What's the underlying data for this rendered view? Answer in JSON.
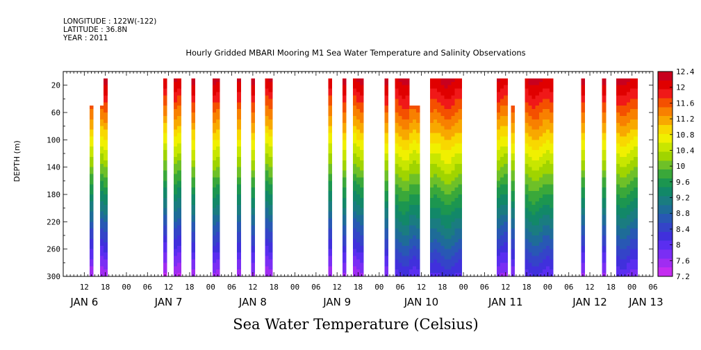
{
  "header": {
    "longitude": "LONGITUDE : 122W(-122)",
    "latitude": "LATITUDE : 36.8N",
    "year": "YEAR : 2011"
  },
  "chart_data": {
    "type": "heatmap",
    "title": "Hourly Gridded MBARI Mooring M1 Sea Water Temperature and Salinity Observations",
    "xlabel": "Sea Water Temperature (Celsius)",
    "ylabel": "DEPTH (m)",
    "x_hours_range": [
      6,
      174
    ],
    "x_units": "hours since JAN 6 00:00, 2011",
    "x_tick_labels": [
      "12",
      "18",
      "00",
      "06",
      "12",
      "18",
      "00",
      "06",
      "12",
      "18",
      "00",
      "06",
      "12",
      "18",
      "00",
      "06",
      "12",
      "18",
      "00",
      "06",
      "12",
      "18",
      "00",
      "06",
      "12",
      "18",
      "00",
      "06"
    ],
    "x_tick_hours": [
      12,
      18,
      24,
      30,
      36,
      42,
      48,
      54,
      60,
      66,
      72,
      78,
      84,
      90,
      96,
      102,
      108,
      114,
      120,
      126,
      132,
      138,
      144,
      150,
      156,
      162,
      168,
      174
    ],
    "day_labels": [
      {
        "label": "JAN  6",
        "hour": 12
      },
      {
        "label": "JAN  7",
        "hour": 36
      },
      {
        "label": "JAN  8",
        "hour": 60
      },
      {
        "label": "JAN  9",
        "hour": 84
      },
      {
        "label": "JAN 10",
        "hour": 108
      },
      {
        "label": "JAN 11",
        "hour": 132
      },
      {
        "label": "JAN 12",
        "hour": 156
      },
      {
        "label": "JAN 13",
        "hour": 172
      }
    ],
    "y_range": [
      300,
      0
    ],
    "y_ticks": [
      20,
      60,
      100,
      140,
      180,
      220,
      260,
      300
    ],
    "y_tick_labels": [
      "20",
      "60",
      "100",
      "140",
      "180",
      "220",
      "260",
      "300"
    ],
    "colorbar": {
      "levels": [
        12.4,
        12,
        11.6,
        11.2,
        10.8,
        10.4,
        10,
        9.6,
        9.2,
        8.8,
        8.4,
        8,
        7.6,
        7.2
      ],
      "labels": [
        "12.4",
        "12",
        "11.6",
        "11.2",
        "10.8",
        "10.4",
        "10",
        "9.6",
        "9.2",
        "8.8",
        "8.4",
        "8",
        "7.6",
        "7.2"
      ],
      "colors": [
        "#c8001e",
        "#e00000",
        "#f01818",
        "#f45000",
        "#f88000",
        "#f8a800",
        "#f8d800",
        "#f0f000",
        "#c8e600",
        "#a0d400",
        "#6ec028",
        "#3aa83a",
        "#1c9650",
        "#128868",
        "#1a7c80",
        "#1e6c98",
        "#2858b4",
        "#3444c8",
        "#4030dc",
        "#5a2ef0",
        "#7a2ef4",
        "#a02cf2",
        "#c42cf0"
      ]
    },
    "segments": [
      {
        "start": 13.5,
        "end": 14.5,
        "top_depth": 60,
        "warm": 0.1
      },
      {
        "start": 16.5,
        "end": 17.5,
        "top_depth": 60,
        "warm": 0.1
      },
      {
        "start": 17.5,
        "end": 18.5,
        "top_depth": 20,
        "warm": 0.1
      },
      {
        "start": 34.5,
        "end": 35.5,
        "top_depth": 20,
        "warm": 0.1
      },
      {
        "start": 37.5,
        "end": 39.5,
        "top_depth": 20,
        "warm": 0.1
      },
      {
        "start": 42.5,
        "end": 43.5,
        "top_depth": 20,
        "warm": 0.1
      },
      {
        "start": 48.5,
        "end": 50.5,
        "top_depth": 20,
        "warm": 0.15
      },
      {
        "start": 55.5,
        "end": 56.5,
        "top_depth": 20,
        "warm": 0.15
      },
      {
        "start": 59.5,
        "end": 60.5,
        "top_depth": 20,
        "warm": 0.15
      },
      {
        "start": 63.5,
        "end": 65.5,
        "top_depth": 20,
        "warm": 0.15
      },
      {
        "start": 81.5,
        "end": 82.5,
        "top_depth": 20,
        "warm": 0.15
      },
      {
        "start": 85.5,
        "end": 86.5,
        "top_depth": 20,
        "warm": 0.15
      },
      {
        "start": 88.5,
        "end": 91.5,
        "top_depth": 20,
        "warm": 0.15
      },
      {
        "start": 97.5,
        "end": 98.5,
        "top_depth": 20,
        "warm": 0.2
      },
      {
        "start": 100.5,
        "end": 104.5,
        "top_depth": 20,
        "warm": 0.45
      },
      {
        "start": 104.5,
        "end": 107.5,
        "top_depth": 60,
        "warm": 0.45
      },
      {
        "start": 110.5,
        "end": 119.5,
        "top_depth": 20,
        "warm": 0.5
      },
      {
        "start": 129.5,
        "end": 132.5,
        "top_depth": 20,
        "warm": 0.25
      },
      {
        "start": 133.5,
        "end": 134.5,
        "top_depth": 60,
        "warm": 0.2
      },
      {
        "start": 137.5,
        "end": 145.5,
        "top_depth": 20,
        "warm": 0.45
      },
      {
        "start": 153.5,
        "end": 154.5,
        "top_depth": 20,
        "warm": 0.15
      },
      {
        "start": 159.5,
        "end": 160.5,
        "top_depth": 20,
        "warm": 0.15
      },
      {
        "start": 163.5,
        "end": 169.5,
        "top_depth": 20,
        "warm": 0.35
      }
    ]
  }
}
